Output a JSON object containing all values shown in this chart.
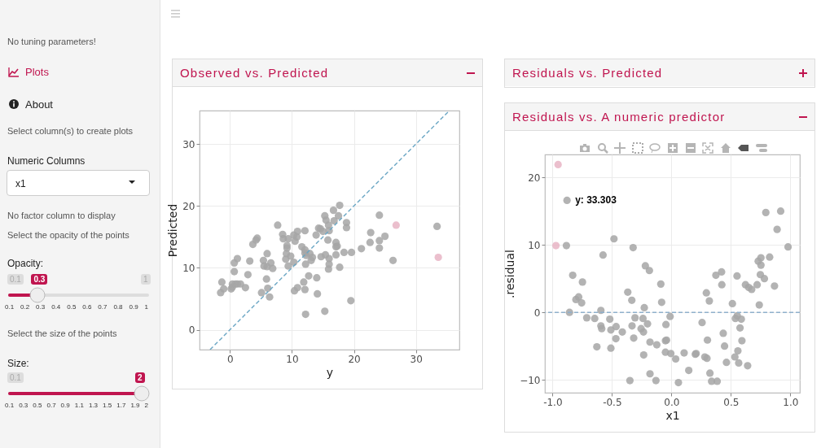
{
  "chart_data": [
    {
      "type": "other",
      "annotations": [
        "No tuning parameters!",
        "Plots",
        "About",
        "Select column(s) to create plots",
        "Numeric Columns",
        "x1",
        "No factor column to display",
        "Select the opacity of the points",
        "Opacity:",
        "0.1",
        "0.3",
        "1",
        "0.1 0.2 0.3 0.4 0.5 0.6 0.7 0.8 0.9 1",
        "Select the size of the points",
        "Size:",
        "0.1",
        "2",
        "0.1 0.3 0.5 0.7 0.9 1.1 1.3 1.5 1.7 1.9 2"
      ]
    },
    {
      "type": "scatter",
      "title": "Observed vs. Predicted",
      "xlabel": "y",
      "ylabel": "Predicted",
      "xlim": [
        -4.9,
        37
      ],
      "ylim": [
        -3.2,
        35.4
      ],
      "xticks": [
        0,
        10,
        20,
        30
      ],
      "yticks": [
        0,
        10,
        20,
        30
      ],
      "grid": true,
      "series": [
        {
          "color": "#a6a6a6",
          "x": [
            -1.5,
            -1.3,
            -1.0,
            0.2,
            0.4,
            0.4,
            0.9,
            1.2,
            1.7,
            0.7,
            0.7,
            1.2,
            2.5,
            2.9,
            3.2,
            3.7,
            4.2,
            4.4,
            5.1,
            5.4,
            5.5,
            6.0,
            5.9,
            6.0,
            6.1,
            6.4,
            6.6,
            6.9,
            7.7,
            8.5,
            8.6,
            9.2,
            9.2,
            9.1,
            9.0,
            9.4,
            9.4,
            9.8,
            10.3,
            10.5,
            10.8,
            10.9,
            10.3,
            10.4,
            10.9,
            11.6,
            12.1,
            12.1,
            12.1,
            12.3,
            12.2,
            11.9,
            12.1,
            12.2,
            12.7,
            12.9,
            13.1,
            13.3,
            13.9,
            14.0,
            14.1,
            14.3,
            14.6,
            14.7,
            15.0,
            15.3,
            15.5,
            15.4,
            15.3,
            15.8,
            15.9,
            16.0,
            16.0,
            16.0,
            15.9,
            16.7,
            16.8,
            17.1,
            17.1,
            17.3,
            17.5,
            17.7,
            17.7,
            17.1,
            18.4,
            18.8,
            18.8,
            19.6,
            19.5,
            21.2,
            22.6,
            22.7,
            24.1,
            24.1,
            24.1,
            25.0,
            26.3,
            33.4
          ],
          "values": [
            6.0,
            7.7,
            6.6,
            6.6,
            6.9,
            7.4,
            7.4,
            7.4,
            7.4,
            9.4,
            10.8,
            11.5,
            6.8,
            8.9,
            11.1,
            13.8,
            14.5,
            14.8,
            6.0,
            11.2,
            10.3,
            10.2,
            8.2,
            12.3,
            6.7,
            5.3,
            10.8,
            9.9,
            16.9,
            15.4,
            14.7,
            13.6,
            13.2,
            12.3,
            11.4,
            14.7,
            10.3,
            11.9,
            15.3,
            14.3,
            15.0,
            15.9,
            10.9,
            6.3,
            6.8,
            13.4,
            12.9,
            16.0,
            12.4,
            12.0,
            10.6,
            7.7,
            6.5,
            2.5,
            8.7,
            12.3,
            11.2,
            11.7,
            15.3,
            8.4,
            5.8,
            16.4,
            16.3,
            11.8,
            15.9,
            18.4,
            17.7,
            12.1,
            3.0,
            14.5,
            16.9,
            16.0,
            11.5,
            10.6,
            9.8,
            19.3,
            17.6,
            14.1,
            13.4,
            13.5,
            18.4,
            20.1,
            10.1,
            12.1,
            12.5,
            17.3,
            16.5,
            12.5,
            4.7,
            13.1,
            14.1,
            15.7,
            14.4,
            13.2,
            18.5,
            15.1,
            11.2,
            16.7
          ]
        },
        {
          "color": "#e8b4c4",
          "x": [
            26.8,
            33.6
          ],
          "values": [
            16.9,
            11.7
          ]
        },
        {
          "type": "line",
          "color": "#6aa6c4",
          "line_style": "dashed",
          "x": [
            -3.2,
            35.4
          ],
          "values": [
            -3.2,
            35.4
          ]
        }
      ]
    },
    {
      "type": "other",
      "title": "Residuals vs. Predicted"
    },
    {
      "type": "scatter",
      "title": "Residuals vs. A numeric predictor",
      "xlabel": "x1",
      "ylabel": ".residual",
      "xlim": [
        -1.064,
        1.08
      ],
      "ylim": [
        -11.9,
        23.4
      ],
      "xticks": [
        {
          "value": -1,
          "label": "-1.0"
        },
        -0.5,
        {
          "value": 0,
          "label": "0.0"
        },
        0.5,
        {
          "value": 1,
          "label": "1.0"
        }
      ],
      "yticks": [
        -10,
        0,
        10,
        20
      ],
      "grid": true,
      "ref_lines": [
        {
          "axis": "y",
          "value": 0,
          "color": "#8fb0cc",
          "line_style": "dashed"
        }
      ],
      "annotations": [
        {
          "text": "y: 33.303",
          "x": -0.878,
          "y": 16.6
        }
      ],
      "series": [
        {
          "color": "#a6a6a6",
          "x": [
            -0.878,
            -0.883,
            -0.83,
            -0.748,
            -0.803,
            -0.78,
            -0.755,
            -0.857,
            -0.712,
            -0.645,
            -0.627,
            -0.593,
            -0.593,
            -0.586,
            -0.575,
            -0.518,
            -0.509,
            -0.509,
            -0.483,
            -0.465,
            -0.467,
            -0.413,
            -0.367,
            -0.349,
            -0.333,
            -0.331,
            -0.322,
            -0.317,
            -0.306,
            -0.255,
            -0.239,
            -0.235,
            -0.228,
            -0.233,
            -0.219,
            -0.185,
            -0.201,
            -0.18,
            -0.18,
            -0.13,
            -0.123,
            -0.089,
            -0.082,
            -0.05,
            -0.041,
            -0.046,
            -0.05,
            -0.011,
            -0.005,
            0.036,
            0.059,
            0.107,
            0.146,
            0.201,
            0.208,
            0.258,
            0.281,
            0.299,
            0.294,
            0.303,
            0.319,
            0.324,
            0.338,
            0.374,
            0.385,
            0.422,
            0.424,
            0.436,
            0.447,
            0.463,
            0.513,
            0.534,
            0.538,
            0.552,
            0.554,
            0.559,
            0.566,
            0.577,
            0.588,
            0.593,
            0.623,
            0.641,
            0.65,
            0.675,
            0.721,
            0.73,
            0.739,
            0.753,
            0.748,
            0.782,
            0.794,
            0.753,
            0.826,
            0.867,
            0.889,
            0.919,
            0.981
          ],
          "values": [
            16.6,
            9.9,
            5.5,
            4.5,
            1.9,
            2.3,
            1.4,
            0.0,
            -0.8,
            -0.9,
            -5.1,
            0.3,
            -2.0,
            -2.4,
            8.5,
            -1.0,
            -2.6,
            -5.3,
            10.9,
            -2.1,
            -3.9,
            -2.9,
            3.0,
            -10.1,
            1.8,
            -2.0,
            9.6,
            -3.8,
            -0.8,
            -2.4,
            -0.9,
            -2.9,
            0.7,
            -6.3,
            6.9,
            6.2,
            -1.7,
            -4.4,
            -9.1,
            -10.1,
            -4.8,
            4.2,
            1.5,
            -4.2,
            -4.1,
            -1.8,
            -5.9,
            -0.6,
            -6.1,
            -6.9,
            -10.4,
            -6.0,
            -8.6,
            -6.2,
            -6.1,
            -1.5,
            -6.6,
            -6.8,
            2.9,
            -4.1,
            1.7,
            -9.0,
            -10.2,
            5.5,
            -10.2,
            6.0,
            4.1,
            -3.1,
            -5.0,
            -7.4,
            1.3,
            -6.6,
            -0.9,
            5.4,
            -0.5,
            -5.7,
            -7.5,
            -2.3,
            -1.0,
            -4.2,
            4.1,
            -7.9,
            3.7,
            3.4,
            4.1,
            7.6,
            1.1,
            8.1,
            5.6,
            5.0,
            14.8,
            7.0,
            8.2,
            3.9,
            12.3,
            15.0,
            9.7
          ]
        },
        {
          "color": "#e8b4c4",
          "x": [
            -0.953,
            -0.971
          ],
          "values": [
            21.9,
            9.9
          ]
        }
      ]
    }
  ]
}
